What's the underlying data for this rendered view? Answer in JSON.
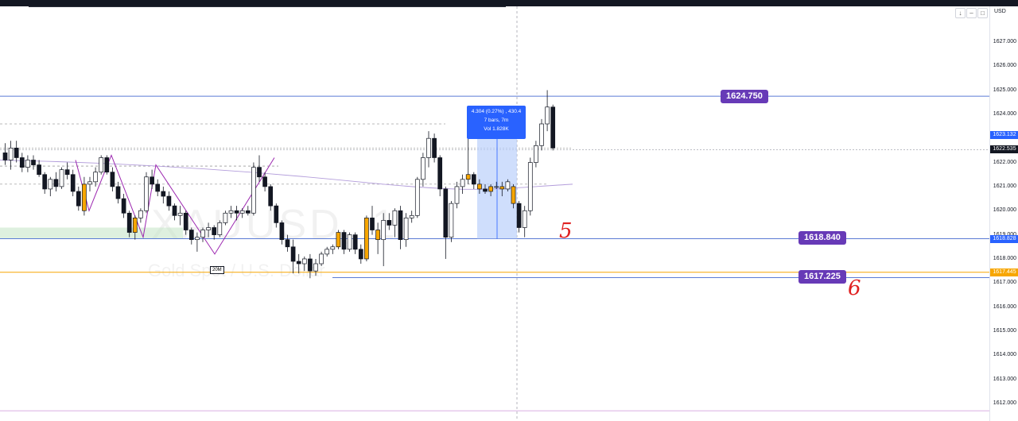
{
  "chart_data": {
    "type": "candlestick",
    "title": "",
    "xlabel": "",
    "ylabel": "",
    "ylim": [
      1611.7,
      1627.9
    ],
    "grid": false,
    "watermark": {
      "symbol": "XAUUSD, 1",
      "description": "Gold Spot / U.S. Dollar"
    },
    "currency": "USD",
    "y_ticks": [
      "1627.000",
      "1626.000",
      "1625.000",
      "1624.000",
      "1623.000",
      "1622.000",
      "1621.000",
      "1620.000",
      "1619.000",
      "1618.000",
      "1617.000",
      "1616.000",
      "1615.000",
      "1614.000",
      "1613.000",
      "1612.000"
    ],
    "horizontal_lines": [
      {
        "price": 1624.75,
        "color": "#5b7bd5",
        "label": "1624.750"
      },
      {
        "price": 1618.84,
        "color": "#5b7bd5",
        "label": "1618.840"
      },
      {
        "price": 1617.225,
        "color": "#5b7bd5",
        "label": "1617.225"
      },
      {
        "price": 1617.445,
        "color": "#f7a600"
      }
    ],
    "axis_tags": [
      {
        "price": 1623.132,
        "label": "1623.132",
        "color": "#2962ff"
      },
      {
        "price": 1622.535,
        "label": "1622.535",
        "color": "#131722"
      },
      {
        "price": 1618.828,
        "label": "1618.828",
        "color": "#2962ff"
      },
      {
        "price": 1617.445,
        "label": "1617.445",
        "color": "#f7a600"
      }
    ],
    "measure": {
      "line1": "4.304 (0.27%) , 430.4",
      "line2": "7 bars, 7m",
      "line3": "Vol 1.828K"
    },
    "candles": [
      {
        "o": 1622.4,
        "h": 1622.8,
        "l": 1621.9,
        "c": 1622.1,
        "col": "b"
      },
      {
        "o": 1622.1,
        "h": 1622.9,
        "l": 1621.7,
        "c": 1622.6,
        "col": "w"
      },
      {
        "o": 1622.6,
        "h": 1622.9,
        "l": 1622.0,
        "c": 1622.2,
        "col": "b"
      },
      {
        "o": 1622.2,
        "h": 1622.4,
        "l": 1621.6,
        "c": 1621.8,
        "col": "b"
      },
      {
        "o": 1621.8,
        "h": 1622.3,
        "l": 1621.6,
        "c": 1622.1,
        "col": "w"
      },
      {
        "o": 1622.1,
        "h": 1622.3,
        "l": 1621.7,
        "c": 1621.9,
        "col": "b"
      },
      {
        "o": 1621.9,
        "h": 1622.1,
        "l": 1621.4,
        "c": 1621.5,
        "col": "b"
      },
      {
        "o": 1621.5,
        "h": 1621.6,
        "l": 1620.7,
        "c": 1620.9,
        "col": "b"
      },
      {
        "o": 1620.9,
        "h": 1621.4,
        "l": 1620.6,
        "c": 1621.3,
        "col": "w"
      },
      {
        "o": 1621.3,
        "h": 1621.6,
        "l": 1620.8,
        "c": 1621.0,
        "col": "b"
      },
      {
        "o": 1621.0,
        "h": 1621.8,
        "l": 1620.9,
        "c": 1621.7,
        "col": "w"
      },
      {
        "o": 1621.7,
        "h": 1622.0,
        "l": 1621.3,
        "c": 1621.5,
        "col": "b"
      },
      {
        "o": 1621.5,
        "h": 1621.7,
        "l": 1620.6,
        "c": 1620.8,
        "col": "b"
      },
      {
        "o": 1620.8,
        "h": 1621.0,
        "l": 1620.0,
        "c": 1620.2,
        "col": "b"
      },
      {
        "o": 1620.0,
        "h": 1621.4,
        "l": 1619.8,
        "c": 1621.1,
        "col": "o"
      },
      {
        "o": 1621.1,
        "h": 1621.4,
        "l": 1620.8,
        "c": 1621.2,
        "col": "w"
      },
      {
        "o": 1621.2,
        "h": 1621.8,
        "l": 1621.0,
        "c": 1621.6,
        "col": "w"
      },
      {
        "o": 1621.6,
        "h": 1622.3,
        "l": 1621.5,
        "c": 1622.2,
        "col": "w"
      },
      {
        "o": 1622.2,
        "h": 1622.3,
        "l": 1621.5,
        "c": 1621.6,
        "col": "b"
      },
      {
        "o": 1621.6,
        "h": 1621.8,
        "l": 1620.8,
        "c": 1621.0,
        "col": "b"
      },
      {
        "o": 1621.0,
        "h": 1621.2,
        "l": 1620.3,
        "c": 1620.5,
        "col": "b"
      },
      {
        "o": 1620.5,
        "h": 1620.7,
        "l": 1619.7,
        "c": 1619.9,
        "col": "b"
      },
      {
        "o": 1619.9,
        "h": 1620.0,
        "l": 1618.9,
        "c": 1619.1,
        "col": "b"
      },
      {
        "o": 1619.1,
        "h": 1619.8,
        "l": 1618.8,
        "c": 1619.7,
        "col": "o"
      },
      {
        "o": 1619.7,
        "h": 1620.1,
        "l": 1619.5,
        "c": 1620.0,
        "col": "w"
      },
      {
        "o": 1620.0,
        "h": 1621.6,
        "l": 1619.9,
        "c": 1621.4,
        "col": "w"
      },
      {
        "o": 1621.4,
        "h": 1621.7,
        "l": 1620.9,
        "c": 1621.1,
        "col": "b"
      },
      {
        "o": 1621.1,
        "h": 1621.3,
        "l": 1620.6,
        "c": 1620.8,
        "col": "b"
      },
      {
        "o": 1620.8,
        "h": 1621.0,
        "l": 1620.3,
        "c": 1620.6,
        "col": "b"
      },
      {
        "o": 1620.6,
        "h": 1620.8,
        "l": 1620.0,
        "c": 1620.2,
        "col": "b"
      },
      {
        "o": 1620.2,
        "h": 1620.3,
        "l": 1619.6,
        "c": 1619.8,
        "col": "b"
      },
      {
        "o": 1619.8,
        "h": 1620.2,
        "l": 1619.4,
        "c": 1619.9,
        "col": "w"
      },
      {
        "o": 1619.9,
        "h": 1620.0,
        "l": 1619.0,
        "c": 1619.2,
        "col": "b"
      },
      {
        "o": 1619.2,
        "h": 1619.3,
        "l": 1618.6,
        "c": 1618.8,
        "col": "b"
      },
      {
        "o": 1618.8,
        "h": 1619.1,
        "l": 1618.3,
        "c": 1618.9,
        "col": "w"
      },
      {
        "o": 1618.9,
        "h": 1619.3,
        "l": 1618.7,
        "c": 1619.2,
        "col": "w"
      },
      {
        "o": 1619.2,
        "h": 1619.5,
        "l": 1618.9,
        "c": 1619.3,
        "col": "w"
      },
      {
        "o": 1619.3,
        "h": 1619.4,
        "l": 1618.8,
        "c": 1619.0,
        "col": "b"
      },
      {
        "o": 1619.0,
        "h": 1619.6,
        "l": 1618.9,
        "c": 1619.5,
        "col": "w"
      },
      {
        "o": 1619.5,
        "h": 1620.0,
        "l": 1619.4,
        "c": 1619.9,
        "col": "w"
      },
      {
        "o": 1619.9,
        "h": 1620.2,
        "l": 1619.7,
        "c": 1620.0,
        "col": "w"
      },
      {
        "o": 1620.0,
        "h": 1620.2,
        "l": 1619.6,
        "c": 1619.9,
        "col": "b"
      },
      {
        "o": 1619.9,
        "h": 1620.1,
        "l": 1619.7,
        "c": 1620.0,
        "col": "w"
      },
      {
        "o": 1620.0,
        "h": 1620.2,
        "l": 1619.8,
        "c": 1619.9,
        "col": "b"
      },
      {
        "o": 1619.9,
        "h": 1622.0,
        "l": 1619.8,
        "c": 1621.8,
        "col": "w"
      },
      {
        "o": 1621.8,
        "h": 1622.3,
        "l": 1621.2,
        "c": 1621.4,
        "col": "b"
      },
      {
        "o": 1621.4,
        "h": 1621.6,
        "l": 1620.8,
        "c": 1621.0,
        "col": "b"
      },
      {
        "o": 1621.0,
        "h": 1621.1,
        "l": 1620.0,
        "c": 1620.2,
        "col": "b"
      },
      {
        "o": 1620.2,
        "h": 1620.3,
        "l": 1619.3,
        "c": 1619.5,
        "col": "b"
      },
      {
        "o": 1619.5,
        "h": 1619.6,
        "l": 1618.6,
        "c": 1618.8,
        "col": "b"
      },
      {
        "o": 1618.8,
        "h": 1619.0,
        "l": 1618.3,
        "c": 1618.5,
        "col": "b"
      },
      {
        "o": 1618.5,
        "h": 1618.8,
        "l": 1617.4,
        "c": 1617.9,
        "col": "b"
      },
      {
        "o": 1617.9,
        "h": 1618.2,
        "l": 1617.4,
        "c": 1617.8,
        "col": "b"
      },
      {
        "o": 1617.8,
        "h": 1618.1,
        "l": 1617.5,
        "c": 1618.0,
        "col": "w"
      },
      {
        "o": 1618.0,
        "h": 1618.2,
        "l": 1617.2,
        "c": 1617.5,
        "col": "b"
      },
      {
        "o": 1617.5,
        "h": 1618.0,
        "l": 1617.3,
        "c": 1617.8,
        "col": "w"
      },
      {
        "o": 1617.8,
        "h": 1618.3,
        "l": 1617.7,
        "c": 1618.2,
        "col": "w"
      },
      {
        "o": 1618.2,
        "h": 1618.5,
        "l": 1618.1,
        "c": 1618.4,
        "col": "w"
      },
      {
        "o": 1618.4,
        "h": 1618.6,
        "l": 1618.2,
        "c": 1618.5,
        "col": "w"
      },
      {
        "o": 1618.5,
        "h": 1619.2,
        "l": 1618.4,
        "c": 1619.1,
        "col": "o"
      },
      {
        "o": 1619.1,
        "h": 1619.2,
        "l": 1618.2,
        "c": 1618.4,
        "col": "b"
      },
      {
        "o": 1618.4,
        "h": 1619.1,
        "l": 1618.3,
        "c": 1619.0,
        "col": "w"
      },
      {
        "o": 1619.0,
        "h": 1619.1,
        "l": 1618.2,
        "c": 1618.4,
        "col": "b"
      },
      {
        "o": 1618.4,
        "h": 1618.6,
        "l": 1617.8,
        "c": 1618.0,
        "col": "b"
      },
      {
        "o": 1618.0,
        "h": 1619.8,
        "l": 1617.9,
        "c": 1619.7,
        "col": "o"
      },
      {
        "o": 1619.7,
        "h": 1620.2,
        "l": 1619.0,
        "c": 1619.2,
        "col": "b"
      },
      {
        "o": 1619.2,
        "h": 1619.5,
        "l": 1618.2,
        "c": 1618.8,
        "col": "o"
      },
      {
        "o": 1618.8,
        "h": 1619.9,
        "l": 1617.7,
        "c": 1619.6,
        "col": "w"
      },
      {
        "o": 1619.6,
        "h": 1619.9,
        "l": 1619.2,
        "c": 1619.4,
        "col": "b"
      },
      {
        "o": 1619.4,
        "h": 1620.1,
        "l": 1618.9,
        "c": 1620.0,
        "col": "w"
      },
      {
        "o": 1620.0,
        "h": 1620.2,
        "l": 1618.4,
        "c": 1618.8,
        "col": "b"
      },
      {
        "o": 1618.8,
        "h": 1619.9,
        "l": 1618.5,
        "c": 1619.7,
        "col": "w"
      },
      {
        "o": 1619.7,
        "h": 1620.0,
        "l": 1619.5,
        "c": 1619.8,
        "col": "w"
      },
      {
        "o": 1619.8,
        "h": 1621.4,
        "l": 1619.7,
        "c": 1621.3,
        "col": "w"
      },
      {
        "o": 1621.3,
        "h": 1622.4,
        "l": 1621.0,
        "c": 1622.2,
        "col": "w"
      },
      {
        "o": 1622.2,
        "h": 1623.3,
        "l": 1621.8,
        "c": 1623.0,
        "col": "w"
      },
      {
        "o": 1623.0,
        "h": 1623.2,
        "l": 1622.0,
        "c": 1622.2,
        "col": "b"
      },
      {
        "o": 1622.2,
        "h": 1622.3,
        "l": 1620.6,
        "c": 1620.9,
        "col": "b"
      },
      {
        "o": 1620.9,
        "h": 1621.0,
        "l": 1618.0,
        "c": 1618.9,
        "col": "b"
      },
      {
        "o": 1618.9,
        "h": 1620.4,
        "l": 1618.7,
        "c": 1620.3,
        "col": "w"
      },
      {
        "o": 1620.3,
        "h": 1621.2,
        "l": 1620.1,
        "c": 1621.0,
        "col": "w"
      },
      {
        "o": 1621.0,
        "h": 1621.5,
        "l": 1620.7,
        "c": 1621.3,
        "col": "w"
      },
      {
        "o": 1621.3,
        "h": 1623.1,
        "l": 1621.1,
        "c": 1621.5,
        "col": "o"
      },
      {
        "o": 1621.5,
        "h": 1621.6,
        "l": 1620.9,
        "c": 1621.1,
        "col": "b"
      },
      {
        "o": 1621.1,
        "h": 1621.3,
        "l": 1620.7,
        "c": 1620.9,
        "col": "o"
      },
      {
        "o": 1620.9,
        "h": 1621.1,
        "l": 1620.7,
        "c": 1620.8,
        "col": "b"
      },
      {
        "o": 1620.8,
        "h": 1621.1,
        "l": 1620.6,
        "c": 1621.0,
        "col": "o"
      },
      {
        "o": 1621.0,
        "h": 1621.2,
        "l": 1620.9,
        "c": 1621.0,
        "col": "w"
      },
      {
        "o": 1621.0,
        "h": 1621.2,
        "l": 1620.6,
        "c": 1620.9,
        "col": "o"
      },
      {
        "o": 1620.9,
        "h": 1621.3,
        "l": 1620.8,
        "c": 1621.2,
        "col": "w"
      },
      {
        "o": 1621.0,
        "h": 1621.1,
        "l": 1620.1,
        "c": 1620.3,
        "col": "o"
      },
      {
        "o": 1620.3,
        "h": 1620.4,
        "l": 1619.1,
        "c": 1619.3,
        "col": "b"
      },
      {
        "o": 1619.3,
        "h": 1620.2,
        "l": 1618.9,
        "c": 1620.0,
        "col": "w"
      },
      {
        "o": 1620.0,
        "h": 1622.2,
        "l": 1619.8,
        "c": 1622.0,
        "col": "w"
      },
      {
        "o": 1622.0,
        "h": 1622.9,
        "l": 1621.8,
        "c": 1622.7,
        "col": "w"
      },
      {
        "o": 1622.7,
        "h": 1623.8,
        "l": 1622.5,
        "c": 1623.6,
        "col": "w"
      },
      {
        "o": 1623.6,
        "h": 1625.0,
        "l": 1623.3,
        "c": 1624.3,
        "col": "w"
      },
      {
        "o": 1624.3,
        "h": 1624.4,
        "l": 1622.5,
        "c": 1622.6,
        "col": "b"
      }
    ]
  },
  "price_axis": {
    "currency_label": "USD"
  },
  "annotations": {
    "mark_5": "5",
    "mark_6": "6",
    "symbol_tag": "20M"
  }
}
